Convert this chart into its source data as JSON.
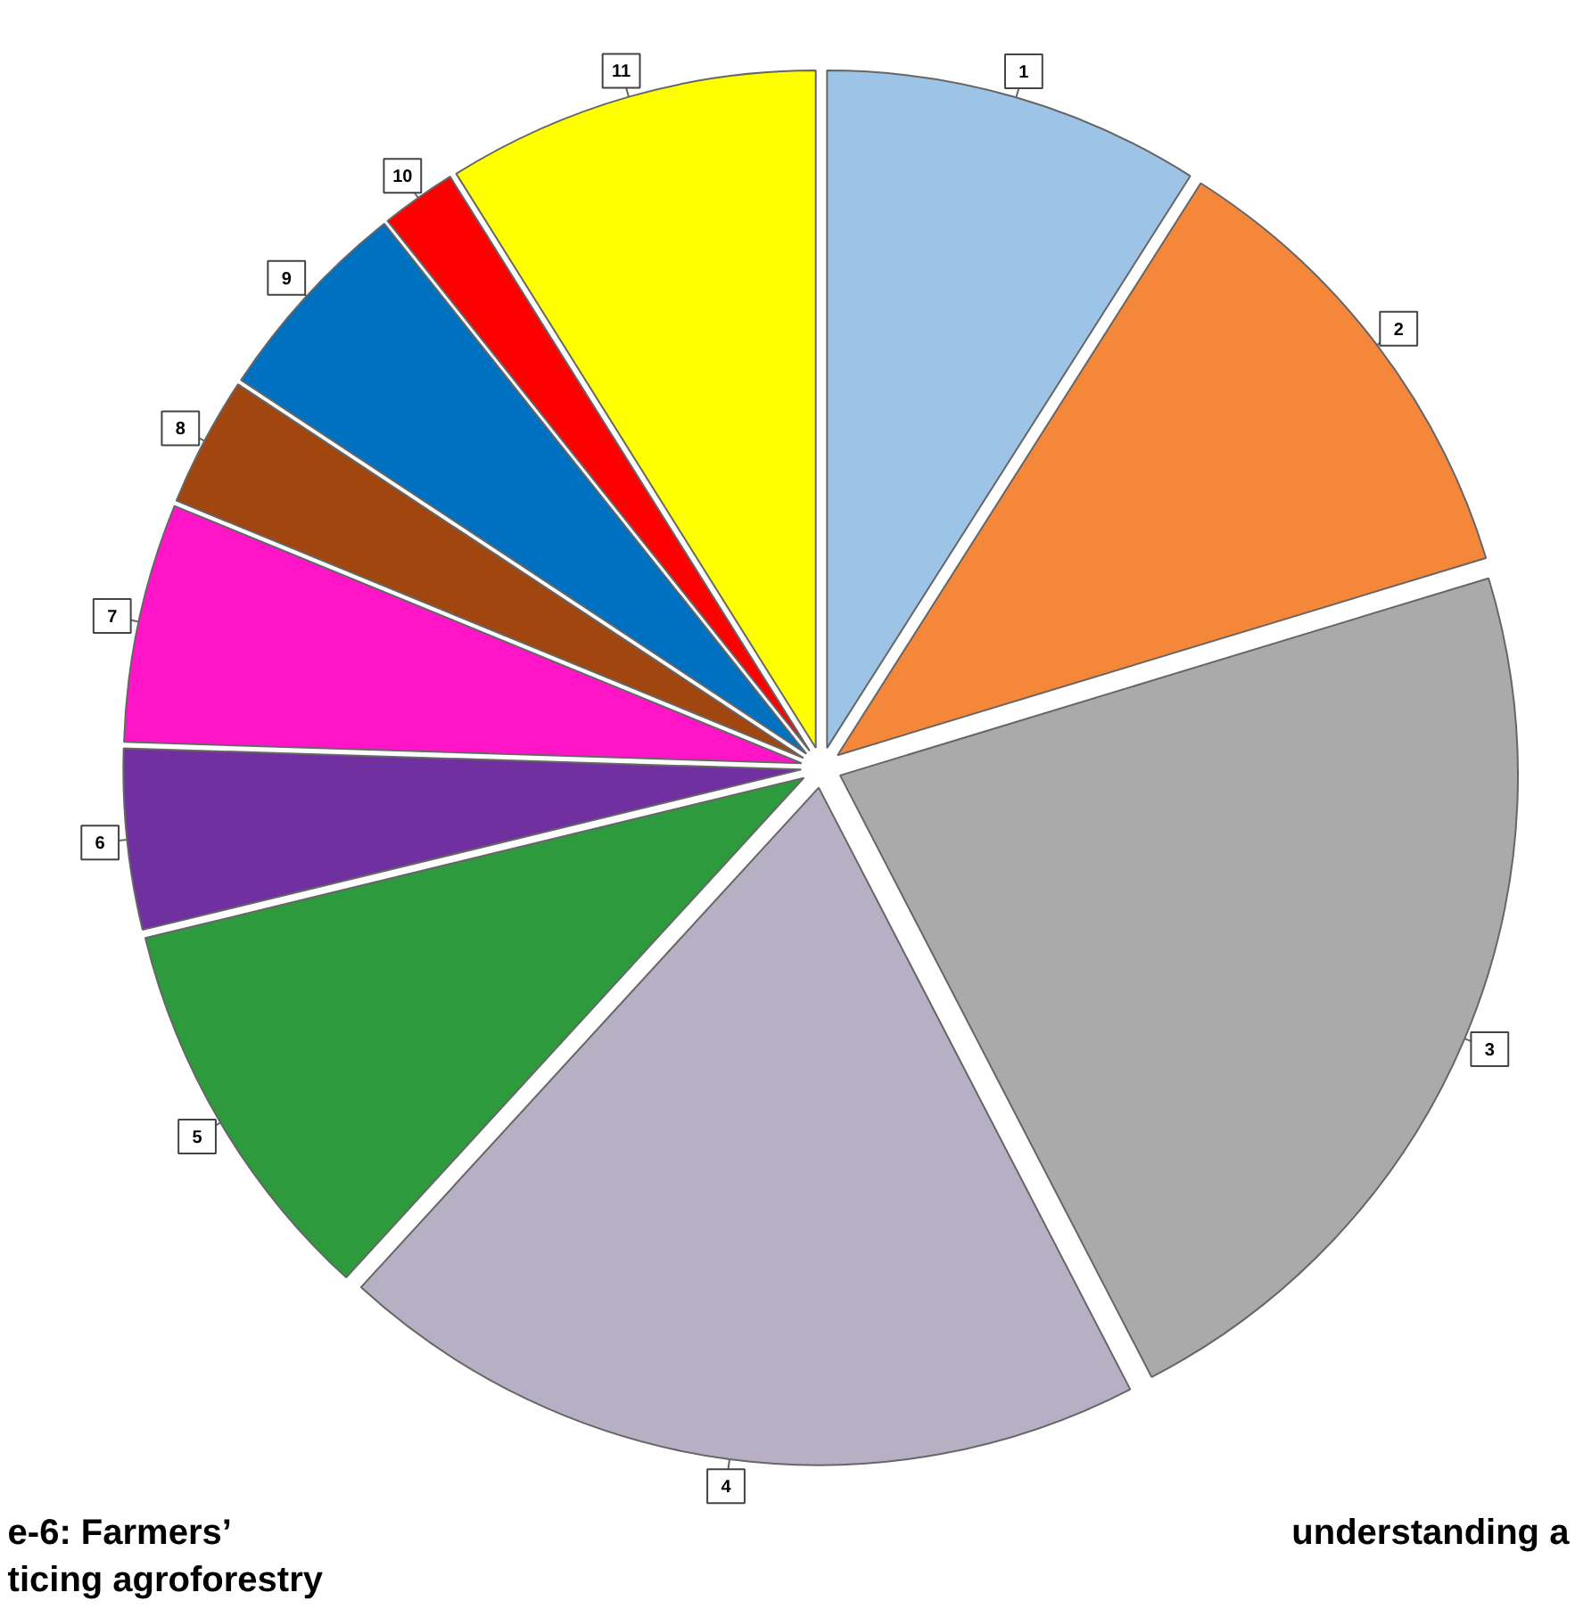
{
  "chart_data": {
    "type": "pie",
    "categories": [
      "1",
      "2",
      "3",
      "4",
      "5",
      "6",
      "7",
      "8",
      "9",
      "10",
      "11"
    ],
    "values": [
      9.0,
      11.3,
      22.1,
      19.4,
      9.4,
      4.3,
      5.7,
      3.1,
      5.0,
      1.8,
      8.9
    ],
    "colors": [
      "#9dc3e6",
      "#f4873a",
      "#aaaaaa",
      "#b7b0c4",
      "#2e9a3e",
      "#7030a0",
      "#ff14c8",
      "#a0460e",
      "#0070c0",
      "#ff0000",
      "#ffff00"
    ],
    "annotations": [
      "e-6: Farmers’",
      "understanding a",
      "ticing agroforestry"
    ]
  }
}
